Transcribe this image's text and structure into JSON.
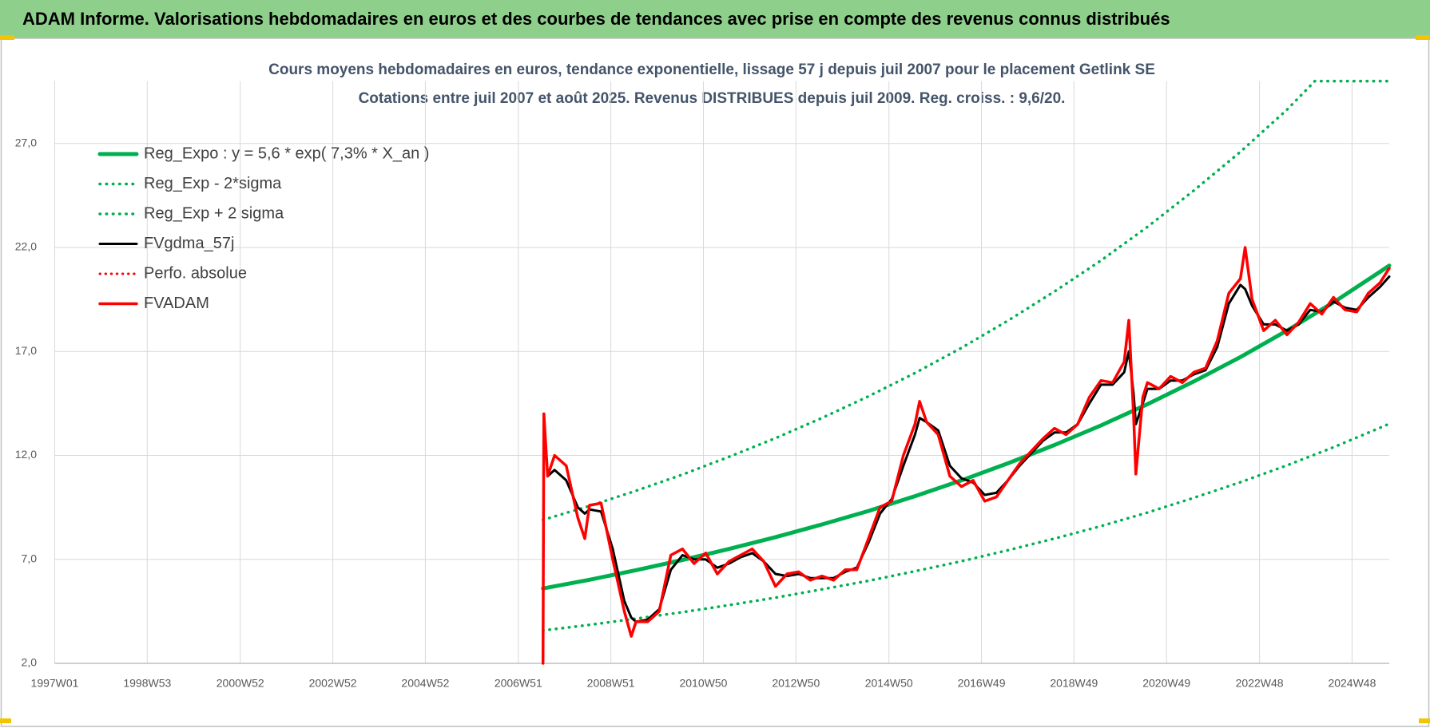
{
  "header": {
    "title": "ADAM Informe. Valorisations hebdomadaires en euros et des courbes de tendances avec prise en compte des revenus connus distribués"
  },
  "chart_data": {
    "type": "line",
    "title": "Cours moyens hebdomadaires en euros, tendance exponentielle, lissage 57 j depuis juil 2007 pour le placement Getlink SE",
    "subtitle": "Cotations entre juil 2007 et août 2025. Revenus DISTRIBUES depuis juil 2009. Reg. croiss. : 9,6/20.",
    "grid": true,
    "legend": "upper left",
    "xlim": [
      1997,
      2025.7
    ],
    "xticks": [
      {
        "value": 1997.0,
        "label": "1997W01"
      },
      {
        "value": 1998.99,
        "label": "1998W53"
      },
      {
        "value": 2000.99,
        "label": "2000W52"
      },
      {
        "value": 2002.98,
        "label": "2002W52"
      },
      {
        "value": 2004.97,
        "label": "2004W52"
      },
      {
        "value": 2006.97,
        "label": "2006W51"
      },
      {
        "value": 2008.96,
        "label": "2008W51"
      },
      {
        "value": 2010.95,
        "label": "2010W50"
      },
      {
        "value": 2012.94,
        "label": "2012W50"
      },
      {
        "value": 2014.94,
        "label": "2014W50"
      },
      {
        "value": 2016.93,
        "label": "2016W49"
      },
      {
        "value": 2018.92,
        "label": "2018W49"
      },
      {
        "value": 2020.91,
        "label": "2020W49"
      },
      {
        "value": 2022.91,
        "label": "2022W48"
      },
      {
        "value": 2024.9,
        "label": "2024W48"
      }
    ],
    "ylim": [
      2,
      30
    ],
    "yticks": [
      {
        "value": 2,
        "label": "2,0"
      },
      {
        "value": 7,
        "label": "7,0"
      },
      {
        "value": 12,
        "label": "12,0"
      },
      {
        "value": 17,
        "label": "17,0"
      },
      {
        "value": 22,
        "label": "22,0"
      },
      {
        "value": 27,
        "label": "27,0"
      }
    ],
    "x": [
      2007.5,
      2007.52,
      2007.6,
      2007.75,
      2008.0,
      2008.25,
      2008.4,
      2008.5,
      2008.75,
      2009.0,
      2009.25,
      2009.4,
      2009.5,
      2009.75,
      2010.0,
      2010.25,
      2010.5,
      2010.75,
      2011.0,
      2011.25,
      2011.5,
      2011.75,
      2012.0,
      2012.25,
      2012.5,
      2012.75,
      2013.0,
      2013.25,
      2013.5,
      2013.75,
      2014.0,
      2014.25,
      2014.5,
      2014.75,
      2015.0,
      2015.25,
      2015.5,
      2015.6,
      2015.75,
      2016.0,
      2016.25,
      2016.5,
      2016.75,
      2017.0,
      2017.25,
      2017.5,
      2017.75,
      2018.0,
      2018.25,
      2018.5,
      2018.75,
      2019.0,
      2019.25,
      2019.5,
      2019.75,
      2020.0,
      2020.1,
      2020.2,
      2020.25,
      2020.4,
      2020.5,
      2020.75,
      2021.0,
      2021.25,
      2021.5,
      2021.75,
      2022.0,
      2022.25,
      2022.5,
      2022.6,
      2022.75,
      2023.0,
      2023.25,
      2023.5,
      2023.75,
      2024.0,
      2024.25,
      2024.5,
      2024.75,
      2025.0,
      2025.25,
      2025.5,
      2025.7
    ],
    "series": [
      {
        "name": "Reg_Expo : y = 5,6 * exp( 7,3% *  X_an )",
        "color": "#00b050",
        "dotted": false,
        "width": 5,
        "x": [
          2007.5,
          2008.5,
          2009.5,
          2010.5,
          2011.5,
          2012.5,
          2013.5,
          2014.5,
          2015.5,
          2016.5,
          2017.5,
          2018.5,
          2019.5,
          2020.5,
          2021.5,
          2022.5,
          2023.5,
          2024.5,
          2025.5,
          2025.7
        ],
        "values": [
          5.6,
          6.02,
          6.48,
          6.97,
          7.5,
          8.07,
          8.68,
          9.33,
          10.04,
          10.8,
          11.62,
          12.5,
          13.44,
          14.46,
          15.56,
          16.73,
          18.0,
          19.36,
          20.83,
          21.13
        ]
      },
      {
        "name": "Reg_Exp - 2*sigma",
        "color": "#00b050",
        "dotted": true,
        "width": 3.5,
        "x": [
          2007.5,
          2008.5,
          2009.5,
          2010.5,
          2011.5,
          2012.5,
          2013.5,
          2014.5,
          2015.5,
          2016.5,
          2017.5,
          2018.5,
          2019.5,
          2020.5,
          2021.5,
          2022.5,
          2023.5,
          2024.5,
          2025.5,
          2025.7
        ],
        "values": [
          3.58,
          3.85,
          4.15,
          4.46,
          4.8,
          5.16,
          5.56,
          5.97,
          6.43,
          6.91,
          7.44,
          8.0,
          8.6,
          9.25,
          9.96,
          10.71,
          11.52,
          12.39,
          13.33,
          13.52
        ]
      },
      {
        "name": "Reg_Exp + 2 sigma",
        "color": "#00b050",
        "dotted": true,
        "width": 3.5,
        "x": [
          2007.5,
          2008.5,
          2009.5,
          2010.5,
          2011.5,
          2012.5,
          2013.5,
          2014.5,
          2015.5,
          2016.5,
          2017.5,
          2018.5,
          2019.5,
          2020.5,
          2021.5,
          2022.5,
          2023.5,
          2024.1,
          2024.5,
          2025.5,
          2025.7
        ],
        "values": [
          8.9,
          9.57,
          10.3,
          11.08,
          11.93,
          12.83,
          13.8,
          14.84,
          15.96,
          17.17,
          18.48,
          19.88,
          21.37,
          22.99,
          24.74,
          26.6,
          28.62,
          30,
          30,
          30,
          30
        ]
      },
      {
        "name": "FVgdma_57j",
        "color": "#000000",
        "dotted": false,
        "width": 3,
        "values": [
          null,
          null,
          11.0,
          11.3,
          10.8,
          9.5,
          9.2,
          9.4,
          9.3,
          7.5,
          5.0,
          4.2,
          4.0,
          4.1,
          4.6,
          6.5,
          7.2,
          7.0,
          7.0,
          6.6,
          6.8,
          7.1,
          7.3,
          6.9,
          6.3,
          6.2,
          6.3,
          6.1,
          6.1,
          6.1,
          6.4,
          6.6,
          7.8,
          9.2,
          9.9,
          11.5,
          13.0,
          13.8,
          13.6,
          13.2,
          11.5,
          10.9,
          10.7,
          10.1,
          10.2,
          10.8,
          11.5,
          12.1,
          12.7,
          13.1,
          13.1,
          13.5,
          14.5,
          15.4,
          15.4,
          16.0,
          17.0,
          15.0,
          13.5,
          14.5,
          15.2,
          15.2,
          15.6,
          15.6,
          15.9,
          16.1,
          17.2,
          19.3,
          20.2,
          20.0,
          19.2,
          18.3,
          18.3,
          18.0,
          18.3,
          19.0,
          18.9,
          19.4,
          19.1,
          19.0,
          19.6,
          20.1,
          20.6
        ]
      },
      {
        "name": "Perfo. absolue",
        "color": "#ff0000",
        "dotted": true,
        "width": 3,
        "values": [
          2.0,
          14.0,
          11.0,
          12.0,
          11.5,
          9.0,
          8.0,
          9.6,
          9.7,
          7.0,
          4.5,
          3.3,
          4.0,
          4.0,
          4.5,
          7.2,
          7.5,
          6.8,
          7.3,
          6.3,
          6.9,
          7.2,
          7.5,
          6.9,
          5.7,
          6.3,
          6.4,
          6.0,
          6.2,
          6.0,
          6.5,
          6.5,
          8.0,
          9.5,
          9.8,
          12.0,
          13.5,
          14.6,
          13.6,
          13.0,
          11.0,
          10.5,
          10.8,
          9.8,
          10.0,
          10.8,
          11.6,
          12.2,
          12.8,
          13.3,
          13.0,
          13.5,
          14.8,
          15.6,
          15.5,
          16.5,
          18.5,
          14.0,
          11.1,
          14.8,
          15.5,
          15.2,
          15.8,
          15.5,
          16.0,
          16.2,
          17.5,
          19.8,
          20.5,
          22.0,
          19.5,
          18.0,
          18.5,
          17.8,
          18.4,
          19.3,
          18.8,
          19.6,
          19.0,
          18.9,
          19.8,
          20.3,
          21.0
        ]
      },
      {
        "name": "FVADAM",
        "color": "#ff0000",
        "dotted": false,
        "width": 3.5,
        "values": [
          2.0,
          14.0,
          11.0,
          12.0,
          11.5,
          9.0,
          8.0,
          9.6,
          9.7,
          7.0,
          4.5,
          3.3,
          4.0,
          4.0,
          4.5,
          7.2,
          7.5,
          6.8,
          7.3,
          6.3,
          6.9,
          7.2,
          7.5,
          6.9,
          5.7,
          6.3,
          6.4,
          6.0,
          6.2,
          6.0,
          6.5,
          6.5,
          8.0,
          9.5,
          9.8,
          12.0,
          13.5,
          14.6,
          13.6,
          13.0,
          11.0,
          10.5,
          10.8,
          9.8,
          10.0,
          10.8,
          11.6,
          12.2,
          12.8,
          13.3,
          13.0,
          13.5,
          14.8,
          15.6,
          15.5,
          16.5,
          18.5,
          14.0,
          11.1,
          14.8,
          15.5,
          15.2,
          15.8,
          15.5,
          16.0,
          16.2,
          17.5,
          19.8,
          20.5,
          22.0,
          19.5,
          18.0,
          18.5,
          17.8,
          18.4,
          19.3,
          18.8,
          19.6,
          19.0,
          18.9,
          19.8,
          20.3,
          21.0
        ]
      }
    ]
  }
}
